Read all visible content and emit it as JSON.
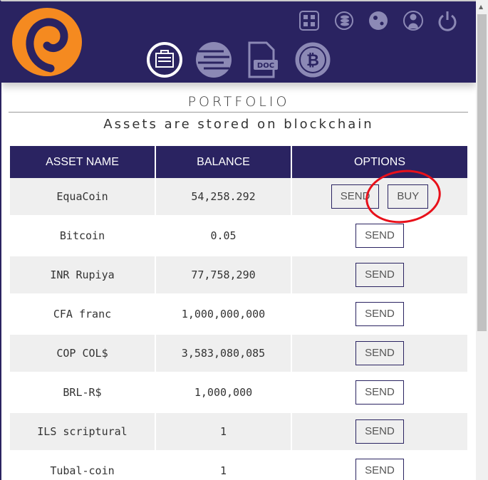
{
  "header": {
    "icons": [
      "qr-code-icon",
      "coin-exchange-icon",
      "settings-gears-icon",
      "user-profile-icon",
      "power-icon"
    ],
    "nav": [
      "portfolio-briefcase-icon",
      "ledger-icon",
      "doc-icon",
      "bitcoin-icon"
    ],
    "nav_doc_label": "DOC",
    "logo_color": "#f58a20",
    "bg": "#2a2361"
  },
  "page": {
    "title": "PORTFOLIO",
    "subtitle": "Assets are stored on blockchain"
  },
  "table": {
    "headers": [
      "ASSET NAME",
      "BALANCE",
      "OPTIONS"
    ],
    "rows": [
      {
        "name": "EquaCoin",
        "balance": "54,258.292",
        "send": "SEND",
        "buy": "BUY"
      },
      {
        "name": "Bitcoin",
        "balance": "0.05",
        "send": "SEND"
      },
      {
        "name": "INR Rupiya",
        "balance": "77,758,290",
        "send": "SEND"
      },
      {
        "name": "CFA franc",
        "balance": "1,000,000,000",
        "send": "SEND"
      },
      {
        "name": "COP COL$",
        "balance": "3,583,080,085",
        "send": "SEND"
      },
      {
        "name": "BRL-R$",
        "balance": "1,000,000",
        "send": "SEND"
      },
      {
        "name": "ILS scriptural",
        "balance": "1",
        "send": "SEND"
      },
      {
        "name": "Tubal-coin",
        "balance": "1",
        "send": "SEND"
      }
    ]
  }
}
